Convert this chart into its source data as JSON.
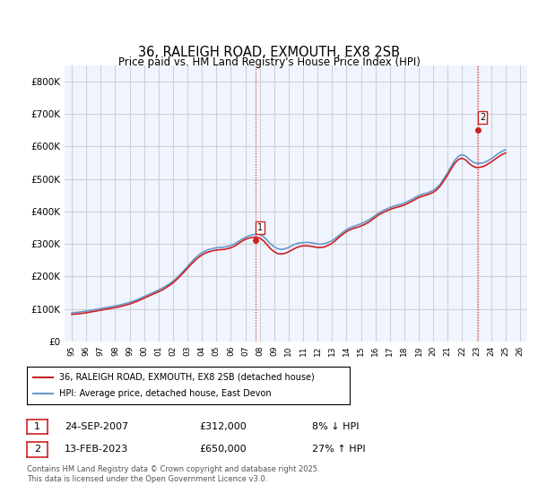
{
  "title": "36, RALEIGH ROAD, EXMOUTH, EX8 2SB",
  "subtitle": "Price paid vs. HM Land Registry's House Price Index (HPI)",
  "ylabel": "",
  "xlim": [
    1994.5,
    2026.5
  ],
  "ylim": [
    0,
    850000
  ],
  "yticks": [
    0,
    100000,
    200000,
    300000,
    400000,
    500000,
    600000,
    700000,
    800000
  ],
  "ytick_labels": [
    "£0",
    "£100K",
    "£200K",
    "£300K",
    "£400K",
    "£500K",
    "£600K",
    "£700K",
    "£800K"
  ],
  "xticks": [
    1995,
    1996,
    1997,
    1998,
    1999,
    2000,
    2001,
    2002,
    2003,
    2004,
    2005,
    2006,
    2007,
    2008,
    2009,
    2010,
    2011,
    2012,
    2013,
    2014,
    2015,
    2016,
    2017,
    2018,
    2019,
    2020,
    2021,
    2022,
    2023,
    2024,
    2025,
    2026
  ],
  "grid_color": "#d0d0d0",
  "bg_color": "#f0f4ff",
  "plot_bg": "#f0f4ff",
  "hpi_color": "#6699cc",
  "price_color": "#cc2222",
  "legend_label_price": "36, RALEIGH ROAD, EXMOUTH, EX8 2SB (detached house)",
  "legend_label_hpi": "HPI: Average price, detached house, East Devon",
  "sale1_label": "1",
  "sale1_date": "24-SEP-2007",
  "sale1_price": "£312,000",
  "sale1_hpi": "8% ↓ HPI",
  "sale1_year": 2007.73,
  "sale1_value": 312000,
  "sale2_label": "2",
  "sale2_date": "13-FEB-2023",
  "sale2_price": "£650,000",
  "sale2_hpi": "27% ↑ HPI",
  "sale2_year": 2023.12,
  "sale2_value": 650000,
  "footer": "Contains HM Land Registry data © Crown copyright and database right 2025.\nThis data is licensed under the Open Government Licence v3.0.",
  "hpi_years": [
    1995.0,
    1995.25,
    1995.5,
    1995.75,
    1996.0,
    1996.25,
    1996.5,
    1996.75,
    1997.0,
    1997.25,
    1997.5,
    1997.75,
    1998.0,
    1998.25,
    1998.5,
    1998.75,
    1999.0,
    1999.25,
    1999.5,
    1999.75,
    2000.0,
    2000.25,
    2000.5,
    2000.75,
    2001.0,
    2001.25,
    2001.5,
    2001.75,
    2002.0,
    2002.25,
    2002.5,
    2002.75,
    2003.0,
    2003.25,
    2003.5,
    2003.75,
    2004.0,
    2004.25,
    2004.5,
    2004.75,
    2005.0,
    2005.25,
    2005.5,
    2005.75,
    2006.0,
    2006.25,
    2006.5,
    2006.75,
    2007.0,
    2007.25,
    2007.5,
    2007.75,
    2008.0,
    2008.25,
    2008.5,
    2008.75,
    2009.0,
    2009.25,
    2009.5,
    2009.75,
    2010.0,
    2010.25,
    2010.5,
    2010.75,
    2011.0,
    2011.25,
    2011.5,
    2011.75,
    2012.0,
    2012.25,
    2012.5,
    2012.75,
    2013.0,
    2013.25,
    2013.5,
    2013.75,
    2014.0,
    2014.25,
    2014.5,
    2014.75,
    2015.0,
    2015.25,
    2015.5,
    2015.75,
    2016.0,
    2016.25,
    2016.5,
    2016.75,
    2017.0,
    2017.25,
    2017.5,
    2017.75,
    2018.0,
    2018.25,
    2018.5,
    2018.75,
    2019.0,
    2019.25,
    2019.5,
    2019.75,
    2020.0,
    2020.25,
    2020.5,
    2020.75,
    2021.0,
    2021.25,
    2021.5,
    2021.75,
    2022.0,
    2022.25,
    2022.5,
    2022.75,
    2023.0,
    2023.25,
    2023.5,
    2023.75,
    2024.0,
    2024.25,
    2024.5,
    2024.75,
    2025.0
  ],
  "hpi_values": [
    88000,
    89000,
    90000,
    91500,
    93000,
    95000,
    97000,
    99000,
    101000,
    103000,
    105000,
    107000,
    109000,
    111000,
    114000,
    117000,
    120000,
    124000,
    128000,
    133000,
    138000,
    143000,
    148000,
    153000,
    158000,
    164000,
    170000,
    177000,
    185000,
    195000,
    206000,
    218000,
    230000,
    243000,
    255000,
    265000,
    273000,
    279000,
    283000,
    286000,
    288000,
    289000,
    290000,
    292000,
    295000,
    300000,
    307000,
    314000,
    320000,
    325000,
    328000,
    330000,
    329000,
    323000,
    312000,
    300000,
    291000,
    285000,
    283000,
    285000,
    289000,
    295000,
    300000,
    303000,
    304000,
    305000,
    304000,
    302000,
    300000,
    299000,
    301000,
    305000,
    310000,
    318000,
    327000,
    336000,
    344000,
    350000,
    354000,
    358000,
    362000,
    367000,
    373000,
    380000,
    388000,
    396000,
    402000,
    407000,
    412000,
    416000,
    419000,
    422000,
    426000,
    431000,
    437000,
    443000,
    449000,
    453000,
    456000,
    460000,
    465000,
    473000,
    485000,
    502000,
    520000,
    540000,
    558000,
    570000,
    575000,
    570000,
    560000,
    552000,
    548000,
    548000,
    550000,
    555000,
    562000,
    570000,
    578000,
    585000,
    590000
  ],
  "price_years": [
    1995.0,
    1995.25,
    1995.5,
    1995.75,
    1996.0,
    1996.25,
    1996.5,
    1996.75,
    1997.0,
    1997.25,
    1997.5,
    1997.75,
    1998.0,
    1998.25,
    1998.5,
    1998.75,
    1999.0,
    1999.25,
    1999.5,
    1999.75,
    2000.0,
    2000.25,
    2000.5,
    2000.75,
    2001.0,
    2001.25,
    2001.5,
    2001.75,
    2002.0,
    2002.25,
    2002.5,
    2002.75,
    2003.0,
    2003.25,
    2003.5,
    2003.75,
    2004.0,
    2004.25,
    2004.5,
    2004.75,
    2005.0,
    2005.25,
    2005.5,
    2005.75,
    2006.0,
    2006.25,
    2006.5,
    2006.75,
    2007.0,
    2007.25,
    2007.5,
    2007.75,
    2008.0,
    2008.25,
    2008.5,
    2008.75,
    2009.0,
    2009.25,
    2009.5,
    2009.75,
    2010.0,
    2010.25,
    2010.5,
    2010.75,
    2011.0,
    2011.25,
    2011.5,
    2011.75,
    2012.0,
    2012.25,
    2012.5,
    2012.75,
    2013.0,
    2013.25,
    2013.5,
    2013.75,
    2014.0,
    2014.25,
    2014.5,
    2014.75,
    2015.0,
    2015.25,
    2015.5,
    2015.75,
    2016.0,
    2016.25,
    2016.5,
    2016.75,
    2017.0,
    2017.25,
    2017.5,
    2017.75,
    2018.0,
    2018.25,
    2018.5,
    2018.75,
    2019.0,
    2019.25,
    2019.5,
    2019.75,
    2020.0,
    2020.25,
    2020.5,
    2020.75,
    2021.0,
    2021.25,
    2021.5,
    2021.75,
    2022.0,
    2022.25,
    2022.5,
    2022.75,
    2023.0,
    2023.25,
    2023.5,
    2023.75,
    2024.0,
    2024.25,
    2024.5,
    2024.75,
    2025.0
  ],
  "price_values": [
    83000,
    84000,
    85000,
    86500,
    88000,
    90000,
    92000,
    94000,
    96000,
    98000,
    100000,
    102000,
    104000,
    106000,
    109000,
    112000,
    115000,
    119000,
    123000,
    128000,
    133000,
    138000,
    143000,
    148000,
    153000,
    158000,
    165000,
    172000,
    180000,
    190000,
    201000,
    213000,
    225000,
    237000,
    248000,
    258000,
    266000,
    272000,
    276000,
    279000,
    281000,
    282000,
    283000,
    285000,
    288000,
    293000,
    300000,
    308000,
    314000,
    318000,
    320000,
    321000,
    318000,
    310000,
    298000,
    285000,
    276000,
    270000,
    269000,
    271000,
    276000,
    282000,
    288000,
    292000,
    294000,
    294000,
    293000,
    291000,
    289000,
    289000,
    291000,
    296000,
    302000,
    311000,
    321000,
    330000,
    338000,
    344000,
    348000,
    351000,
    355000,
    360000,
    366000,
    374000,
    382000,
    390000,
    396000,
    401000,
    406000,
    410000,
    413000,
    416000,
    420000,
    425000,
    431000,
    437000,
    443000,
    447000,
    450000,
    454000,
    459000,
    467000,
    479000,
    496000,
    513000,
    532000,
    549000,
    560000,
    564000,
    558000,
    547000,
    539000,
    535000,
    536000,
    539000,
    545000,
    552000,
    560000,
    568000,
    575000,
    580000
  ]
}
